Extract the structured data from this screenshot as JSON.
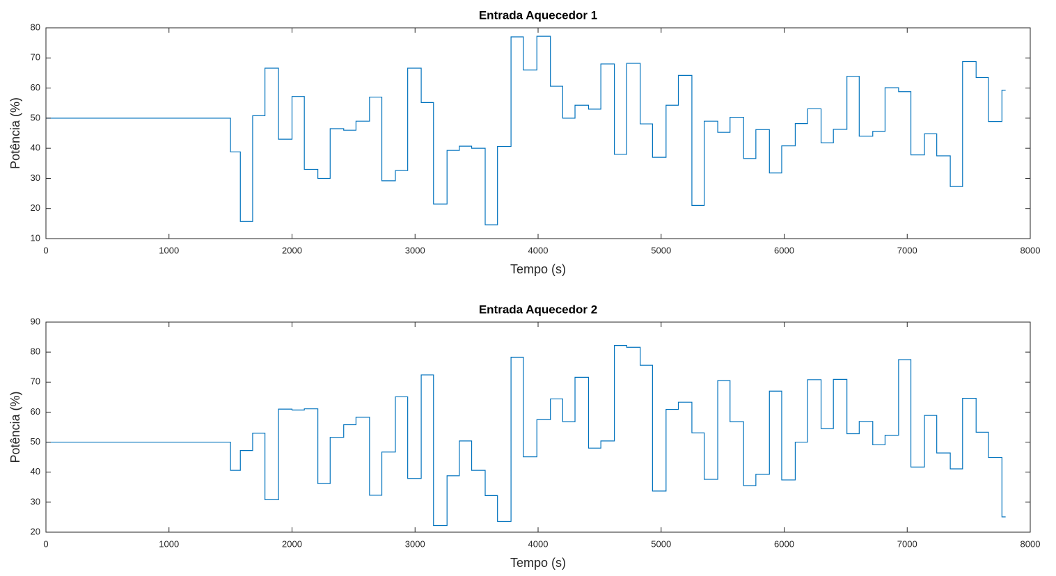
{
  "chart_data": [
    {
      "type": "step",
      "title": "Entrada Aquecedor 1",
      "x_label": "Tempo (s)",
      "y_label": "Potência (%)",
      "xlim": [
        0,
        8000
      ],
      "xticks": [
        0,
        1000,
        2000,
        3000,
        4000,
        5000,
        6000,
        7000,
        8000
      ],
      "ylim": [
        10,
        80
      ],
      "yticks": [
        10,
        20,
        30,
        40,
        50,
        60,
        70,
        80
      ],
      "series": [
        {
          "color": "#0072bd",
          "x": [
            0,
            1500,
            1580,
            1680,
            1780,
            1890,
            2000,
            2100,
            2210,
            2310,
            2420,
            2520,
            2630,
            2730,
            2840,
            2940,
            3050,
            3150,
            3260,
            3360,
            3460,
            3570,
            3670,
            3780,
            3880,
            3990,
            4100,
            4200,
            4300,
            4410,
            4510,
            4620,
            4720,
            4830,
            4930,
            5040,
            5140,
            5250,
            5350,
            5460,
            5560,
            5670,
            5770,
            5880,
            5980,
            6090,
            6190,
            6300,
            6400,
            6510,
            6610,
            6720,
            6820,
            6930,
            7030,
            7140,
            7240,
            7350,
            7450,
            7560,
            7660,
            7770,
            7800
          ],
          "values": [
            50,
            38.8,
            15.7,
            50.8,
            66.6,
            43,
            57.2,
            33,
            30,
            46.5,
            46,
            49,
            57,
            29.2,
            32.6,
            66.6,
            55.2,
            21.5,
            39.3,
            40.7,
            40,
            14.6,
            40.6,
            77,
            66,
            77.2,
            60.6,
            50,
            54.3,
            53,
            68,
            38,
            68.2,
            48.1,
            37,
            54.3,
            64.2,
            21,
            49,
            45.3,
            50.3,
            36.6,
            46.2,
            31.8,
            40.8,
            48.2,
            53.1,
            41.8,
            46.3,
            63.9,
            44,
            45.6,
            60.1,
            58.8,
            37.8,
            44.8,
            37.5,
            27.3,
            68.8,
            63.5,
            48.9,
            59.3,
            59.3
          ]
        }
      ]
    },
    {
      "type": "step",
      "title": "Entrada Aquecedor 2",
      "x_label": "Tempo (s)",
      "y_label": "Potência (%)",
      "xlim": [
        0,
        8000
      ],
      "xticks": [
        0,
        1000,
        2000,
        3000,
        4000,
        5000,
        6000,
        7000,
        8000
      ],
      "ylim": [
        20,
        90
      ],
      "yticks": [
        20,
        30,
        40,
        50,
        60,
        70,
        80,
        90
      ],
      "series": [
        {
          "color": "#0072bd",
          "x": [
            0,
            1500,
            1580,
            1680,
            1780,
            1890,
            2000,
            2100,
            2210,
            2310,
            2420,
            2520,
            2630,
            2730,
            2840,
            2940,
            3050,
            3150,
            3260,
            3360,
            3460,
            3570,
            3670,
            3780,
            3880,
            3990,
            4100,
            4200,
            4300,
            4410,
            4510,
            4620,
            4720,
            4830,
            4930,
            5040,
            5140,
            5250,
            5350,
            5460,
            5560,
            5670,
            5770,
            5880,
            5980,
            6090,
            6190,
            6300,
            6400,
            6510,
            6610,
            6720,
            6820,
            6930,
            7030,
            7140,
            7240,
            7350,
            7450,
            7560,
            7660,
            7770,
            7800
          ],
          "values": [
            50,
            40.6,
            47.2,
            53,
            30.8,
            61,
            60.7,
            61.1,
            36.2,
            51.6,
            55.8,
            58.3,
            32.3,
            46.7,
            65.1,
            37.9,
            72.4,
            22.2,
            38.8,
            50.4,
            40.6,
            32.2,
            23.6,
            78.3,
            45.1,
            57.5,
            64.4,
            56.8,
            71.6,
            48,
            50.4,
            82.2,
            81.6,
            75.6,
            33.7,
            60.9,
            63.3,
            53.1,
            37.6,
            70.5,
            56.8,
            35.5,
            39.3,
            67,
            37.4,
            50,
            70.8,
            54.5,
            70.9,
            52.8,
            56.9,
            49.1,
            52.3,
            77.5,
            41.7,
            58.9,
            46.4,
            41.1,
            64.6,
            53.3,
            44.9,
            25.1,
            25.1
          ]
        }
      ]
    }
  ]
}
